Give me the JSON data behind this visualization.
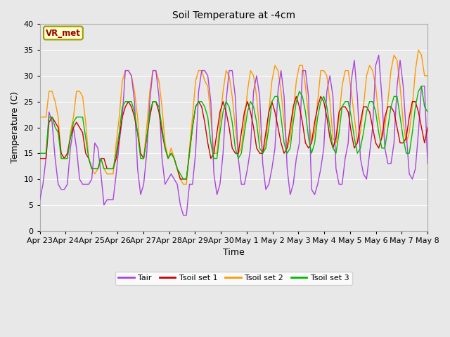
{
  "title": "Soil Temperature at -4cm",
  "xlabel": "Time",
  "ylabel": "Temperature (C)",
  "ylim": [
    0,
    40
  ],
  "background_color": "#e8e8e8",
  "plot_bg_color": "#e8e8e8",
  "annotation_text": "VR_met",
  "annotation_bg": "#ffffcc",
  "annotation_border": "#999900",
  "annotation_text_color": "#990000",
  "line_colors": {
    "Tair": "#aa44dd",
    "Tsoil_set1": "#cc0000",
    "Tsoil_set2": "#ff9900",
    "Tsoil_set3": "#00bb00"
  },
  "legend_labels": [
    "Tair",
    "Tsoil set 1",
    "Tsoil set 2",
    "Tsoil set 3"
  ],
  "x_tick_labels": [
    "Apr 23",
    "Apr 24",
    "Apr 25",
    "Apr 26",
    "Apr 27",
    "Apr 28",
    "Apr 29",
    "Apr 30",
    "May 1",
    "May 2",
    "May 3",
    "May 4",
    "May 5",
    "May 6",
    "May 7",
    "May 8"
  ],
  "num_days": 16,
  "points_per_day": 8,
  "tair_data": [
    6,
    9,
    14,
    23,
    21,
    14,
    9,
    8,
    8,
    9,
    16,
    20,
    16,
    10,
    9,
    9,
    9,
    10,
    17,
    16,
    11,
    5,
    6,
    6,
    6,
    11,
    17,
    22,
    31,
    31,
    30,
    25,
    12,
    7,
    9,
    15,
    25,
    31,
    31,
    26,
    14,
    9,
    10,
    11,
    10,
    9,
    5,
    3,
    3,
    9,
    9,
    15,
    27,
    31,
    31,
    30,
    25,
    11,
    7,
    9,
    15,
    25,
    31,
    31,
    26,
    14,
    9,
    9,
    12,
    16,
    27,
    30,
    26,
    13,
    8,
    9,
    12,
    16,
    27,
    31,
    26,
    12,
    7,
    9,
    14,
    17,
    31,
    31,
    26,
    8,
    7,
    9,
    12,
    16,
    27,
    30,
    26,
    12,
    9,
    9,
    14,
    17,
    29,
    33,
    26,
    14,
    11,
    10,
    15,
    20,
    32,
    34,
    26,
    16,
    13,
    13,
    17,
    28,
    33,
    28,
    19,
    11,
    10,
    12,
    19,
    28,
    28,
    13
  ],
  "tsoil1_data": [
    14,
    14,
    14,
    21,
    22,
    21,
    20,
    15,
    14,
    15,
    18,
    20,
    21,
    20,
    19,
    15,
    14,
    12,
    12,
    12,
    14,
    14,
    12,
    12,
    12,
    14,
    18,
    22,
    24,
    25,
    24,
    22,
    19,
    15,
    14,
    18,
    22,
    25,
    25,
    23,
    19,
    16,
    14,
    15,
    14,
    12,
    10,
    10,
    10,
    15,
    20,
    24,
    25,
    24,
    21,
    17,
    14,
    15,
    19,
    23,
    25,
    23,
    20,
    16,
    15,
    15,
    19,
    23,
    25,
    23,
    20,
    16,
    15,
    15,
    19,
    23,
    25,
    23,
    20,
    17,
    15,
    16,
    20,
    24,
    26,
    24,
    21,
    17,
    16,
    17,
    21,
    24,
    26,
    25,
    22,
    18,
    16,
    18,
    23,
    24,
    24,
    23,
    19,
    16,
    17,
    21,
    24,
    24,
    23,
    20,
    17,
    16,
    18,
    22,
    24,
    24,
    23,
    20,
    17,
    17,
    18,
    22,
    25,
    25,
    23,
    20,
    17,
    20
  ],
  "tsoil2_data": [
    22,
    22,
    22,
    27,
    27,
    25,
    22,
    14,
    14,
    14,
    19,
    22,
    27,
    27,
    26,
    21,
    14,
    12,
    11,
    12,
    14,
    12,
    11,
    11,
    11,
    17,
    22,
    29,
    31,
    31,
    30,
    27,
    22,
    14,
    14,
    20,
    27,
    31,
    31,
    29,
    24,
    17,
    14,
    16,
    14,
    12,
    10,
    9,
    9,
    16,
    22,
    29,
    31,
    31,
    29,
    28,
    22,
    15,
    15,
    21,
    27,
    31,
    30,
    26,
    20,
    15,
    16,
    21,
    27,
    31,
    30,
    26,
    19,
    15,
    17,
    23,
    29,
    32,
    31,
    27,
    21,
    16,
    18,
    23,
    29,
    32,
    32,
    28,
    22,
    17,
    19,
    25,
    31,
    31,
    30,
    25,
    18,
    17,
    22,
    28,
    31,
    31,
    27,
    22,
    17,
    19,
    24,
    30,
    32,
    31,
    28,
    22,
    18,
    20,
    25,
    31,
    34,
    33,
    28,
    21,
    17,
    19,
    24,
    31,
    35,
    34,
    30,
    30
  ],
  "tsoil3_data": [
    15,
    15,
    15,
    22,
    22,
    20,
    19,
    14,
    14,
    14,
    18,
    21,
    22,
    22,
    22,
    18,
    14,
    12,
    12,
    12,
    14,
    12,
    12,
    12,
    12,
    15,
    19,
    24,
    25,
    25,
    25,
    23,
    19,
    14,
    14,
    18,
    23,
    25,
    25,
    24,
    20,
    16,
    14,
    15,
    14,
    12,
    11,
    10,
    10,
    15,
    20,
    24,
    25,
    25,
    24,
    22,
    17,
    14,
    14,
    19,
    23,
    25,
    24,
    21,
    16,
    14,
    15,
    19,
    23,
    25,
    24,
    21,
    16,
    15,
    16,
    20,
    25,
    26,
    26,
    22,
    17,
    15,
    16,
    21,
    25,
    27,
    26,
    23,
    18,
    15,
    17,
    22,
    25,
    26,
    24,
    20,
    16,
    15,
    19,
    24,
    25,
    25,
    22,
    18,
    15,
    16,
    19,
    23,
    25,
    25,
    23,
    19,
    16,
    16,
    20,
    24,
    26,
    26,
    22,
    18,
    15,
    15,
    19,
    24,
    27,
    28,
    24,
    23
  ]
}
